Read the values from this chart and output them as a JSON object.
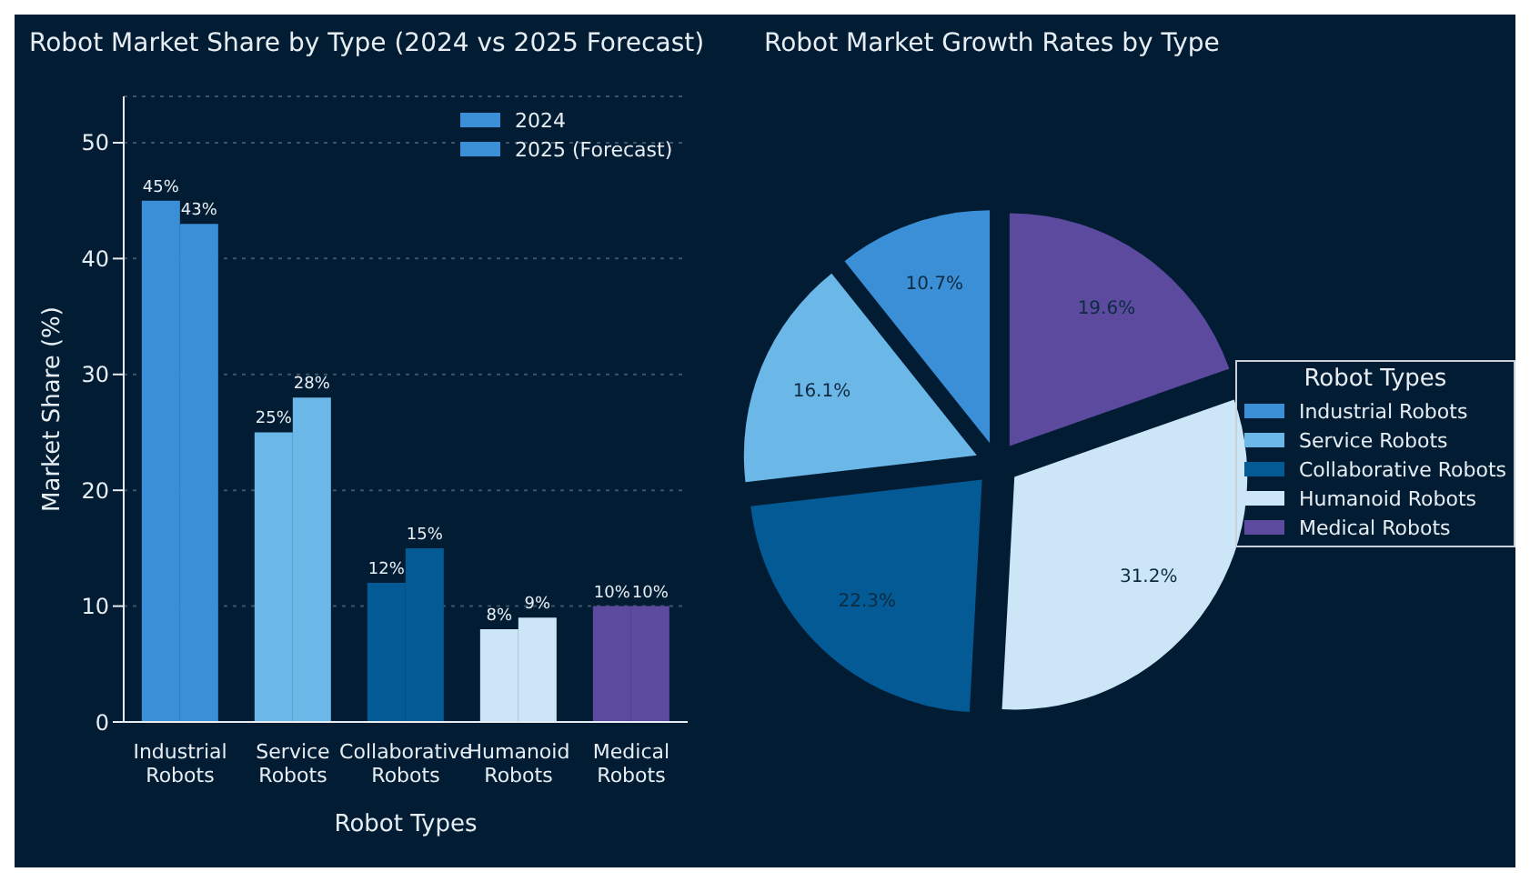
{
  "chart_data": [
    {
      "type": "bar",
      "title": "Robot Market Share by Type (2024 vs 2025 Forecast)",
      "xlabel": "Robot Types",
      "ylabel": "Market Share (%)",
      "categories": [
        "Industrial Robots",
        "Service Robots",
        "Collaborative Robots",
        "Humanoid Robots",
        "Medical Robots"
      ],
      "series": [
        {
          "name": "2024",
          "color": "#3a8fd6",
          "colors": [
            "#3a8fd6",
            "#6bb8e8",
            "#035a94",
            "#cce6f7",
            "#5b4a9e"
          ],
          "values": [
            45,
            25,
            12,
            8,
            10
          ],
          "value_labels": [
            "45%",
            "25%",
            "12%",
            "8%",
            "10%"
          ]
        },
        {
          "name": "2025 (Forecast)",
          "color": "#3a8fd6",
          "colors": [
            "#3a8fd6",
            "#6bb8e8",
            "#035a94",
            "#cce6f7",
            "#5b4a9e"
          ],
          "values": [
            43,
            28,
            15,
            9,
            10
          ],
          "value_labels": [
            "43%",
            "28%",
            "15%",
            "9%",
            "10%"
          ]
        }
      ],
      "ylim": [
        0,
        54
      ],
      "yticks": [
        0,
        10,
        20,
        30,
        40,
        50
      ],
      "grid": "y",
      "legend": "top right"
    },
    {
      "type": "pie",
      "title": "Robot Market Growth Rates by Type",
      "legend_title": "Robot Types",
      "categories": [
        "Industrial Robots",
        "Service Robots",
        "Collaborative Robots",
        "Humanoid Robots",
        "Medical Robots"
      ],
      "values": [
        10.7,
        16.1,
        22.3,
        31.2,
        19.6
      ],
      "colors": [
        "#3a8fd6",
        "#6bb8e8",
        "#035a94",
        "#cce6f7",
        "#5b4a9e"
      ],
      "value_labels": [
        "10.7%",
        "16.1%",
        "22.3%",
        "31.2%",
        "19.6%"
      ],
      "legend": "right"
    }
  ]
}
